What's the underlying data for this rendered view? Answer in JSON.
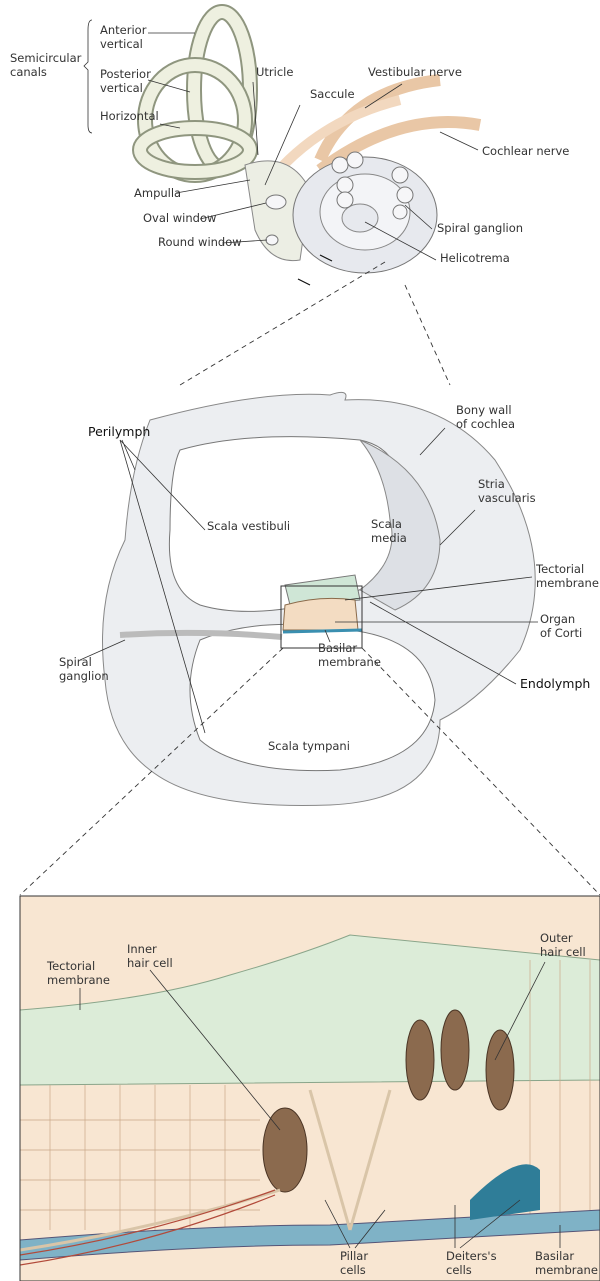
{
  "inner_ear": [
    [
      "Semicircular",
      "canals"
    ],
    [
      "Anterior",
      "vertical"
    ],
    [
      "Posterior",
      "vertical"
    ],
    [
      "Horizontal"
    ],
    [
      "Utricle"
    ],
    [
      "Saccule"
    ],
    [
      "Vestibular nerve"
    ],
    [
      "Cochlear nerve"
    ],
    [
      "Ampulla"
    ],
    [
      "Oval window"
    ],
    [
      "Round window"
    ],
    [
      "Spiral ganglion"
    ],
    [
      "Helicotrema"
    ]
  ],
  "cochlea_section": [
    [
      "Perilymph"
    ],
    [
      "Bony wall",
      "of cochlea"
    ],
    [
      "Stria",
      "vascularis"
    ],
    [
      "Scala vestibuli"
    ],
    [
      "Scala",
      "media"
    ],
    [
      "Tectorial",
      "membrane"
    ],
    [
      "Organ",
      "of Corti"
    ],
    [
      "Spiral",
      "ganglion"
    ],
    [
      "Basilar",
      "membrane"
    ],
    [
      "Scala tympani"
    ],
    [
      "Endolymph"
    ]
  ],
  "organ_of_corti": [
    [
      "Tectorial",
      "membrane"
    ],
    [
      "Inner",
      "hair cell"
    ],
    [
      "Outer",
      "hair cell"
    ],
    [
      "Pillar",
      "cells"
    ],
    [
      "Deiters's",
      "cells"
    ],
    [
      "Basilar",
      "membrane"
    ]
  ]
}
